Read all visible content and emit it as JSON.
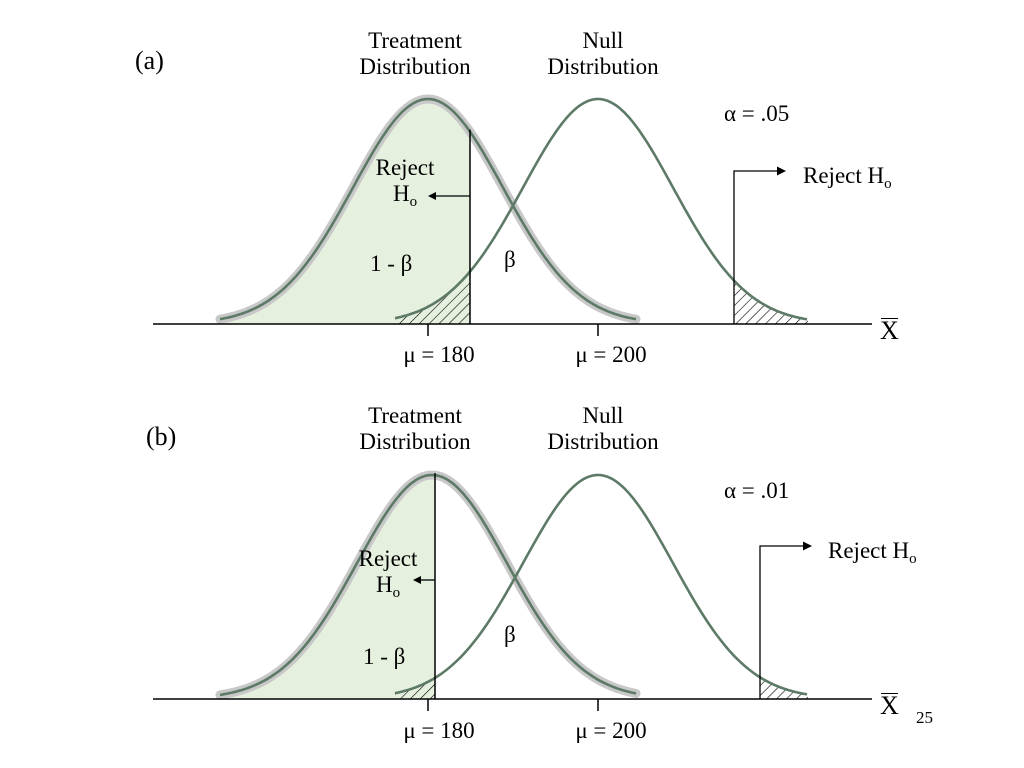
{
  "slide_number": "25",
  "colors": {
    "curve": "#5d7a67",
    "curve_halo": "#c8c8c8",
    "power_fill": "#e6f0df",
    "axis": "#000000"
  },
  "panels": [
    {
      "tag": "(a)",
      "treatment_label": [
        "Treatment",
        "Distribution"
      ],
      "null_label": [
        "Null",
        "Distribution"
      ],
      "alpha_text": "α = .05",
      "reject_left": {
        "line1": "Reject",
        "line2_main": "H",
        "line2_sub": "o"
      },
      "reject_right": {
        "main": "Reject H",
        "sub": "o"
      },
      "power_text": "1 - β",
      "beta_text": "β",
      "mu_treatment": "μ = 180",
      "mu_null": "μ = 200",
      "axis_label": "X",
      "treatment_mean": 180,
      "null_mean": 200
    },
    {
      "tag": "(b)",
      "treatment_label": [
        "Treatment",
        "Distribution"
      ],
      "null_label": [
        "Null",
        "Distribution"
      ],
      "alpha_text": "α = .01",
      "reject_left": {
        "line1": "Reject",
        "line2_main": "H",
        "line2_sub": "o"
      },
      "reject_right": {
        "main": "Reject H",
        "sub": "o"
      },
      "power_text": "1 - β",
      "beta_text": "β",
      "mu_treatment": "μ = 180",
      "mu_null": "μ = 200",
      "axis_label": "X",
      "treatment_mean": 180,
      "null_mean": 200
    }
  ]
}
